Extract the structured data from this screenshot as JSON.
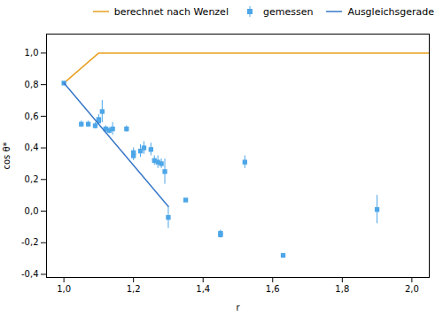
{
  "chart_data": {
    "type": "scatter",
    "xlabel": "r",
    "ylabel": "cos θ*",
    "xlim": [
      0.95,
      2.05
    ],
    "ylim": [
      -0.42,
      1.12
    ],
    "xticks": [
      {
        "value": 1.0,
        "label": "1,0"
      },
      {
        "value": 1.2,
        "label": "1,2"
      },
      {
        "value": 1.4,
        "label": "1,4"
      },
      {
        "value": 1.6,
        "label": "1,6"
      },
      {
        "value": 1.8,
        "label": "1,8"
      },
      {
        "value": 2.0,
        "label": "2,0"
      }
    ],
    "yticks": [
      {
        "value": -0.4,
        "label": "-0,4"
      },
      {
        "value": -0.2,
        "label": "-0,2"
      },
      {
        "value": 0.0,
        "label": "0,0"
      },
      {
        "value": 0.2,
        "label": "0,2"
      },
      {
        "value": 0.4,
        "label": "0,4"
      },
      {
        "value": 0.6,
        "label": "0,6"
      },
      {
        "value": 0.8,
        "label": "0,8"
      },
      {
        "value": 1.0,
        "label": "1,0"
      }
    ],
    "grid": false,
    "legend": "upper right",
    "series": [
      {
        "name": "berechnet nach Wenzel",
        "type": "line",
        "color": "#E8A020",
        "x": [
          1.0,
          1.1,
          2.05
        ],
        "values": [
          0.81,
          1.0,
          1.0
        ]
      },
      {
        "name": "gemessen",
        "type": "scatter",
        "marker": "square",
        "color": "#4DA6E8",
        "x": [
          1.0,
          1.05,
          1.07,
          1.09,
          1.1,
          1.1,
          1.11,
          1.12,
          1.13,
          1.14,
          1.18,
          1.2,
          1.2,
          1.22,
          1.23,
          1.25,
          1.26,
          1.27,
          1.28,
          1.29,
          1.3,
          1.35,
          1.45,
          1.45,
          1.52,
          1.63,
          1.9
        ],
        "values": [
          0.81,
          0.55,
          0.55,
          0.54,
          0.58,
          0.57,
          0.63,
          0.52,
          0.51,
          0.52,
          0.52,
          0.37,
          0.35,
          0.38,
          0.4,
          0.39,
          0.32,
          0.31,
          0.3,
          0.25,
          -0.04,
          0.07,
          -0.14,
          -0.15,
          0.31,
          -0.28,
          0.01
        ],
        "yerr": [
          0.0,
          0.02,
          0.02,
          0.02,
          0.03,
          0.02,
          0.07,
          0.02,
          0.02,
          0.04,
          0.02,
          0.03,
          0.03,
          0.04,
          0.04,
          0.04,
          0.03,
          0.04,
          0.03,
          0.08,
          0.07,
          0.0,
          0.02,
          0.02,
          0.04,
          0.0,
          0.09
        ]
      },
      {
        "name": "Ausgleichsgerade",
        "type": "line",
        "color": "#3878C8",
        "x": [
          1.0,
          1.3
        ],
        "values": [
          0.81,
          0.03
        ]
      }
    ]
  }
}
